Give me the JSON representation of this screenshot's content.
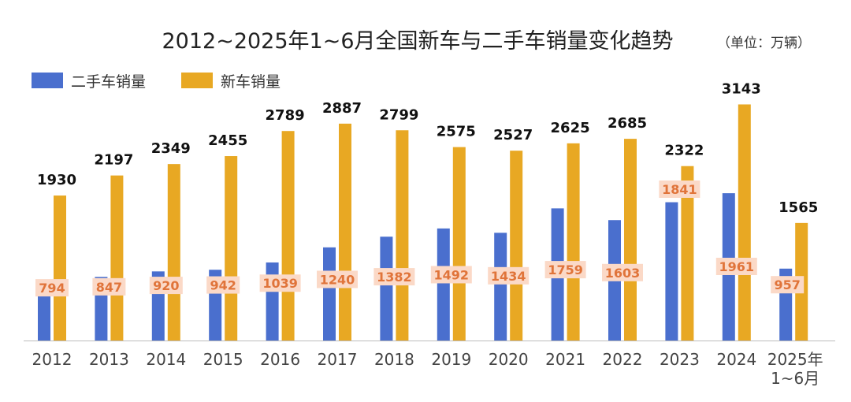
{
  "chart_data": {
    "type": "bar",
    "title": "2012~2025年1~6月全国新车与二手车销量变化趋势",
    "unit": "（单位：万辆）",
    "categories": [
      "2012",
      "2013",
      "2014",
      "2015",
      "2016",
      "2017",
      "2018",
      "2019",
      "2020",
      "2021",
      "2022",
      "2023",
      "2024",
      "2025年\n1~6月"
    ],
    "series": [
      {
        "name": "二手车销量",
        "color": "#4a6fce",
        "values": [
          794,
          847,
          920,
          942,
          1039,
          1240,
          1382,
          1492,
          1434,
          1759,
          1603,
          1841,
          1961,
          957
        ]
      },
      {
        "name": "新车销量",
        "color": "#e8a823",
        "values": [
          1930,
          2197,
          2349,
          2455,
          2789,
          2887,
          2799,
          2575,
          2527,
          2625,
          2685,
          2322,
          3143,
          1565
        ]
      }
    ],
    "ylim": [
      0,
      3500
    ],
    "legend_position": "top-left",
    "grid": false
  },
  "colors": {
    "used_label_bg": "#fbd9c7",
    "used_label_text": "#e0743a",
    "axis": "#bbbbbb"
  }
}
